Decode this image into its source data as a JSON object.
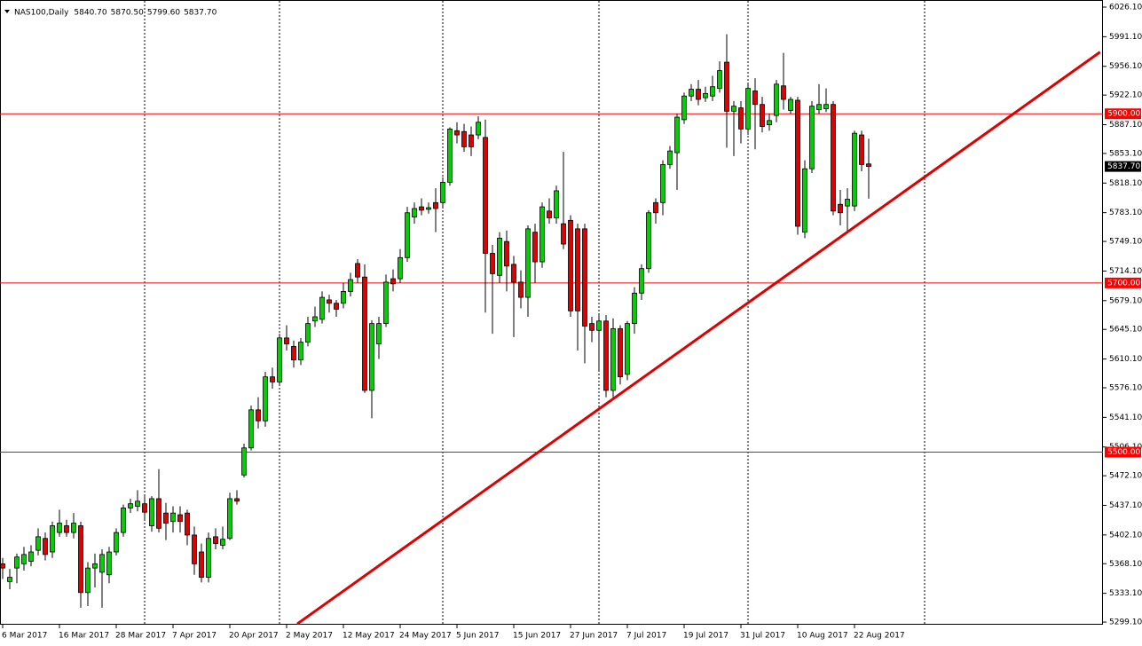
{
  "chart_data": {
    "type": "candlestick",
    "title": "NAS100,Daily",
    "header_values": [
      "5840.70",
      "5870.50",
      "5799.60",
      "5837.70"
    ],
    "categories": [
      "6 Mar 2017",
      null,
      null,
      null,
      null,
      null,
      null,
      null,
      "16 Mar 2017",
      null,
      null,
      null,
      null,
      null,
      null,
      null,
      "28 Mar 2017",
      null,
      null,
      null,
      null,
      null,
      null,
      null,
      "7 Apr 2017",
      null,
      null,
      null,
      null,
      null,
      null,
      null,
      "20 Apr 2017",
      null,
      null,
      null,
      null,
      null,
      null,
      null,
      "2 May 2017",
      null,
      null,
      null,
      null,
      null,
      null,
      null,
      "12 May 2017",
      null,
      null,
      null,
      null,
      null,
      null,
      null,
      "24 May 2017",
      null,
      null,
      null,
      null,
      null,
      null,
      null,
      "5 Jun 2017",
      null,
      null,
      null,
      null,
      null,
      null,
      null,
      "15 Jun 2017",
      null,
      null,
      null,
      null,
      null,
      null,
      null,
      "27 Jun 2017",
      null,
      null,
      null,
      null,
      null,
      null,
      null,
      "7 Jul 2017",
      null,
      null,
      null,
      null,
      null,
      null,
      null,
      "19 Jul 2017",
      null,
      null,
      null,
      null,
      null,
      null,
      null,
      "31 Jul 2017",
      null,
      null,
      null,
      null,
      null,
      null,
      null,
      "10 Aug 2017",
      null,
      null,
      null,
      null,
      null,
      null,
      null,
      "22 Aug 2017",
      null,
      null
    ],
    "open": [
      5368,
      5347,
      5363,
      5368,
      5371,
      5384,
      5398,
      5382,
      5405,
      5413,
      5405,
      5413,
      5334,
      5363,
      5358,
      5355,
      5382,
      5405,
      5434,
      5436,
      5439,
      5413,
      5445,
      5428,
      5418,
      5426,
      5428,
      5402,
      5382,
      5352,
      5400,
      5390,
      5398,
      5445,
      5473,
      5505,
      5550,
      5537,
      5589,
      5583,
      5635,
      5625,
      5609,
      5630,
      5655,
      5657,
      5680,
      5676,
      5676,
      5690,
      5723,
      5707,
      5573,
      5628,
      5652,
      5705,
      5705,
      5730,
      5778,
      5790,
      5787,
      5795,
      5795,
      5819,
      5880,
      5879,
      5875,
      5875,
      5872,
      5735,
      5709,
      5749,
      5722,
      5701,
      5683,
      5760,
      5725,
      5785,
      5777,
      5770,
      5774,
      5764,
      5764,
      5652,
      5644,
      5655,
      5573,
      5646,
      5592,
      5652,
      5688,
      5717,
      5795,
      5795,
      5840,
      5854,
      5893,
      5921,
      5929,
      5919,
      5921,
      5930,
      5961,
      5903,
      5907,
      5882,
      5927,
      5911,
      5887,
      5898,
      5933,
      5904,
      5916,
      5760,
      5835,
      5905,
      5906,
      5911,
      5793,
      5791,
      5791,
      5875,
      5840.7
    ],
    "high": [
      5375,
      5362,
      5380,
      5388,
      5390,
      5410,
      5405,
      5418,
      5432,
      5420,
      5428,
      5418,
      5370,
      5380,
      5385,
      5388,
      5410,
      5438,
      5445,
      5455,
      5448,
      5448,
      5480,
      5440,
      5436,
      5436,
      5432,
      5412,
      5392,
      5405,
      5410,
      5412,
      5452,
      5455,
      5510,
      5555,
      5565,
      5595,
      5600,
      5640,
      5650,
      5632,
      5635,
      5660,
      5672,
      5690,
      5686,
      5680,
      5700,
      5712,
      5728,
      5722,
      5656,
      5660,
      5710,
      5716,
      5740,
      5790,
      5795,
      5800,
      5795,
      5812,
      5825,
      5884,
      5890,
      5888,
      5885,
      5897,
      5893,
      5745,
      5760,
      5762,
      5732,
      5715,
      5768,
      5770,
      5795,
      5800,
      5815,
      5855,
      5780,
      5770,
      5770,
      5660,
      5662,
      5662,
      5658,
      5650,
      5655,
      5695,
      5722,
      5786,
      5800,
      5845,
      5862,
      5900,
      5925,
      5935,
      5940,
      5932,
      5945,
      5962,
      5994,
      5915,
      5915,
      5935,
      5942,
      5920,
      5900,
      5940,
      5972,
      5920,
      5920,
      5845,
      5915,
      5935,
      5930,
      5915,
      5810,
      5812,
      5880,
      5880,
      5870.5
    ],
    "low": [
      5350,
      5338,
      5345,
      5360,
      5365,
      5378,
      5372,
      5375,
      5400,
      5400,
      5398,
      5316,
      5318,
      5340,
      5316,
      5345,
      5378,
      5400,
      5428,
      5430,
      5420,
      5406,
      5405,
      5396,
      5405,
      5405,
      5390,
      5355,
      5346,
      5346,
      5385,
      5385,
      5396,
      5438,
      5470,
      5502,
      5528,
      5530,
      5575,
      5578,
      5620,
      5600,
      5603,
      5625,
      5648,
      5652,
      5665,
      5660,
      5670,
      5684,
      5700,
      5570,
      5540,
      5610,
      5648,
      5690,
      5700,
      5725,
      5770,
      5780,
      5782,
      5760,
      5788,
      5815,
      5865,
      5855,
      5850,
      5870,
      5665,
      5640,
      5700,
      5690,
      5636,
      5670,
      5660,
      5700,
      5718,
      5770,
      5770,
      5740,
      5660,
      5620,
      5605,
      5630,
      5595,
      5565,
      5565,
      5580,
      5585,
      5640,
      5680,
      5712,
      5770,
      5780,
      5835,
      5810,
      5888,
      5915,
      5910,
      5914,
      5915,
      5925,
      5860,
      5850,
      5865,
      5875,
      5858,
      5878,
      5880,
      5890,
      5905,
      5900,
      5757,
      5753,
      5830,
      5900,
      5902,
      5780,
      5768,
      5760,
      5785,
      5832,
      5799.6
    ],
    "close": [
      5363,
      5352,
      5376,
      5379,
      5382,
      5400,
      5379,
      5413,
      5416,
      5405,
      5416,
      5334,
      5363,
      5368,
      5379,
      5382,
      5405,
      5434,
      5439,
      5442,
      5429,
      5445,
      5410,
      5416,
      5428,
      5418,
      5402,
      5368,
      5352,
      5398,
      5392,
      5397,
      5445,
      5442,
      5505,
      5550,
      5537,
      5589,
      5583,
      5635,
      5628,
      5609,
      5630,
      5652,
      5660,
      5683,
      5676,
      5669,
      5690,
      5704,
      5707,
      5573,
      5652,
      5652,
      5701,
      5699,
      5730,
      5783,
      5788,
      5786,
      5789,
      5788,
      5819,
      5882,
      5875,
      5861,
      5861,
      5890,
      5735,
      5711,
      5753,
      5720,
      5701,
      5683,
      5764,
      5725,
      5790,
      5777,
      5809,
      5746,
      5667,
      5667,
      5649,
      5644,
      5655,
      5573,
      5646,
      5589,
      5652,
      5688,
      5717,
      5783,
      5783,
      5840,
      5856,
      5896,
      5921,
      5929,
      5917,
      5924,
      5932,
      5951,
      5903,
      5909,
      5882,
      5930,
      5911,
      5885,
      5892,
      5935,
      5917,
      5917,
      5767,
      5835,
      5909,
      5911,
      5911,
      5785,
      5783,
      5799,
      5877,
      5840,
      5837.7
    ],
    "up_color": "#00d000",
    "down_color": "#e00000",
    "ylim": [
      5296,
      6034.5
    ],
    "yticks": [
      {
        "value": 6026.1,
        "label": "6026.10"
      },
      {
        "value": 5991.1,
        "label": "5991.10"
      },
      {
        "value": 5956.1,
        "label": "5956.10"
      },
      {
        "value": 5922.1,
        "label": "5922.10"
      },
      {
        "value": 5887.1,
        "label": "5887.10"
      },
      {
        "value": 5853.1,
        "label": "5853.10"
      },
      {
        "value": 5818.1,
        "label": "5818.10"
      },
      {
        "value": 5783.1,
        "label": "5783.10"
      },
      {
        "value": 5749.1,
        "label": "5749.10"
      },
      {
        "value": 5714.1,
        "label": "5714.10"
      },
      {
        "value": 5679.1,
        "label": "5679.10"
      },
      {
        "value": 5645.1,
        "label": "5645.10"
      },
      {
        "value": 5610.1,
        "label": "5610.10"
      },
      {
        "value": 5576.1,
        "label": "5576.10"
      },
      {
        "value": 5541.1,
        "label": "5541.10"
      },
      {
        "value": 5506.1,
        "label": "5506.10"
      },
      {
        "value": 5472.1,
        "label": "5472.10"
      },
      {
        "value": 5437.1,
        "label": "5437.10"
      },
      {
        "value": 5402.1,
        "label": "5402.10"
      },
      {
        "value": 5368.1,
        "label": "5368.10"
      },
      {
        "value": 5333.1,
        "label": "5333.10"
      },
      {
        "value": 5299.1,
        "label": "5299.10"
      }
    ],
    "levels": [
      {
        "value": 5900,
        "label": "5900.00"
      },
      {
        "value": 5700,
        "label": "5700.00"
      },
      {
        "value": 5500,
        "label": "5500.00"
      }
    ],
    "level_color": "#ff0000",
    "last_price": {
      "value": 5837.7,
      "label": "5837.70"
    },
    "trendline": {
      "color": "#e00000",
      "start": [
        41.5,
        5297
      ],
      "end": [
        154.6,
        5973
      ]
    }
  }
}
